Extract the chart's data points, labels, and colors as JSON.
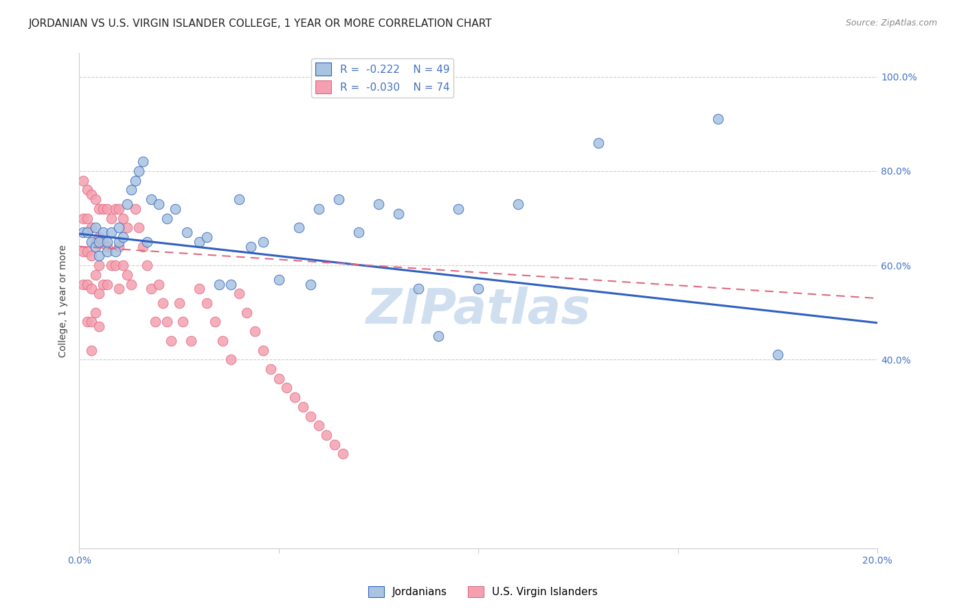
{
  "title": "JORDANIAN VS U.S. VIRGIN ISLANDER COLLEGE, 1 YEAR OR MORE CORRELATION CHART",
  "source": "Source: ZipAtlas.com",
  "ylabel": "College, 1 year or more",
  "xlim": [
    0.0,
    0.2
  ],
  "ylim": [
    0.0,
    1.05
  ],
  "r_jordanian": -0.222,
  "n_jordanian": 49,
  "r_usvi": -0.03,
  "n_usvi": 74,
  "color_jordanian": "#a8c4e0",
  "color_usvi": "#f4a0b0",
  "color_jordanian_line": "#3060c0",
  "color_usvi_line": "#e06880",
  "watermark": "ZIPatlas",
  "jordanian_x": [
    0.001,
    0.002,
    0.003,
    0.004,
    0.004,
    0.005,
    0.005,
    0.006,
    0.007,
    0.007,
    0.008,
    0.009,
    0.01,
    0.01,
    0.011,
    0.012,
    0.013,
    0.014,
    0.015,
    0.016,
    0.017,
    0.018,
    0.02,
    0.022,
    0.024,
    0.027,
    0.03,
    0.032,
    0.035,
    0.038,
    0.04,
    0.043,
    0.046,
    0.05,
    0.055,
    0.058,
    0.06,
    0.065,
    0.07,
    0.075,
    0.08,
    0.085,
    0.09,
    0.095,
    0.1,
    0.11,
    0.13,
    0.16,
    0.175
  ],
  "jordanian_y": [
    0.67,
    0.67,
    0.65,
    0.64,
    0.68,
    0.65,
    0.62,
    0.67,
    0.65,
    0.63,
    0.67,
    0.63,
    0.68,
    0.65,
    0.66,
    0.73,
    0.76,
    0.78,
    0.8,
    0.82,
    0.65,
    0.74,
    0.73,
    0.7,
    0.72,
    0.67,
    0.65,
    0.66,
    0.56,
    0.56,
    0.74,
    0.64,
    0.65,
    0.57,
    0.68,
    0.56,
    0.72,
    0.74,
    0.67,
    0.73,
    0.71,
    0.55,
    0.45,
    0.72,
    0.55,
    0.73,
    0.86,
    0.91,
    0.41
  ],
  "usvi_x": [
    0.001,
    0.001,
    0.001,
    0.001,
    0.002,
    0.002,
    0.002,
    0.002,
    0.002,
    0.003,
    0.003,
    0.003,
    0.003,
    0.003,
    0.003,
    0.004,
    0.004,
    0.004,
    0.004,
    0.005,
    0.005,
    0.005,
    0.005,
    0.005,
    0.006,
    0.006,
    0.006,
    0.007,
    0.007,
    0.007,
    0.008,
    0.008,
    0.009,
    0.009,
    0.01,
    0.01,
    0.01,
    0.011,
    0.011,
    0.012,
    0.012,
    0.013,
    0.014,
    0.015,
    0.016,
    0.017,
    0.018,
    0.019,
    0.02,
    0.021,
    0.022,
    0.023,
    0.025,
    0.026,
    0.028,
    0.03,
    0.032,
    0.034,
    0.036,
    0.038,
    0.04,
    0.042,
    0.044,
    0.046,
    0.048,
    0.05,
    0.052,
    0.054,
    0.056,
    0.058,
    0.06,
    0.062,
    0.064,
    0.066
  ],
  "usvi_y": [
    0.78,
    0.7,
    0.63,
    0.56,
    0.76,
    0.7,
    0.63,
    0.56,
    0.48,
    0.75,
    0.68,
    0.62,
    0.55,
    0.48,
    0.42,
    0.74,
    0.65,
    0.58,
    0.5,
    0.72,
    0.66,
    0.6,
    0.54,
    0.47,
    0.72,
    0.65,
    0.56,
    0.72,
    0.64,
    0.56,
    0.7,
    0.6,
    0.72,
    0.6,
    0.72,
    0.64,
    0.55,
    0.7,
    0.6,
    0.68,
    0.58,
    0.56,
    0.72,
    0.68,
    0.64,
    0.6,
    0.55,
    0.48,
    0.56,
    0.52,
    0.48,
    0.44,
    0.52,
    0.48,
    0.44,
    0.55,
    0.52,
    0.48,
    0.44,
    0.4,
    0.54,
    0.5,
    0.46,
    0.42,
    0.38,
    0.36,
    0.34,
    0.32,
    0.3,
    0.28,
    0.26,
    0.24,
    0.22,
    0.2
  ],
  "grid_color": "#cccccc",
  "bg_color": "#ffffff",
  "title_fontsize": 11,
  "axis_label_fontsize": 10,
  "legend_fontsize": 11,
  "tick_fontsize": 10,
  "source_fontsize": 9,
  "watermark_fontsize": 52,
  "watermark_color": "#d0dff0",
  "trend_j_x0": 0.0,
  "trend_j_y0": 0.667,
  "trend_j_x1": 0.2,
  "trend_j_y1": 0.478,
  "trend_u_x0": 0.0,
  "trend_u_y0": 0.64,
  "trend_u_x1": 0.2,
  "trend_u_y1": 0.53
}
